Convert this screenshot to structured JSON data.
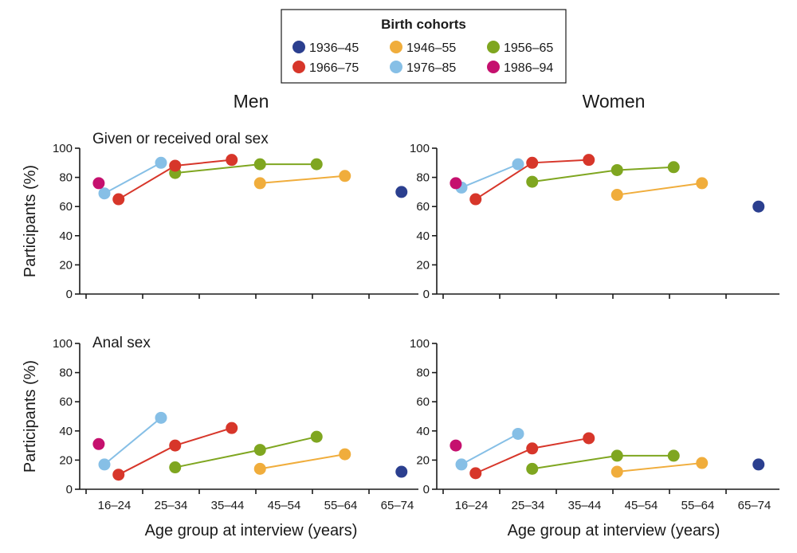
{
  "legend": {
    "title": "Birth cohorts",
    "cohorts": [
      {
        "label": "1936–45",
        "color": "#2b3f8f"
      },
      {
        "label": "1946–55",
        "color": "#f0ad3c"
      },
      {
        "label": "1956–65",
        "color": "#7fa620"
      },
      {
        "label": "1966–75",
        "color": "#d7362a"
      },
      {
        "label": "1976–85",
        "color": "#86bfe6"
      },
      {
        "label": "1986–94",
        "color": "#c5106e"
      }
    ]
  },
  "columns": [
    "Men",
    "Women"
  ],
  "rows": [
    "Given or received oral sex",
    "Anal sex"
  ],
  "xlabel": "Age group at interview (years)",
  "ylabel": "Participants (%)",
  "chart_data": [
    {
      "type": "line",
      "title": "Given or received oral sex",
      "column": "Men",
      "xlabel": "",
      "ylabel": "Participants (%)",
      "categories": [
        "16–24",
        "25–34",
        "35–44",
        "45–54",
        "55–64",
        "65–74"
      ],
      "ylim": [
        0,
        100
      ],
      "yticks": [
        0,
        20,
        40,
        60,
        80,
        100
      ],
      "series": [
        {
          "name": "1936–45",
          "points": [
            [
              5.25,
              70
            ]
          ]
        },
        {
          "name": "1946–55",
          "points": [
            [
              2.75,
              76
            ],
            [
              4.25,
              81
            ]
          ]
        },
        {
          "name": "1956–65",
          "points": [
            [
              1.25,
              83
            ],
            [
              2.75,
              89
            ],
            [
              3.75,
              89
            ]
          ]
        },
        {
          "name": "1966–75",
          "points": [
            [
              0.25,
              65
            ],
            [
              1.25,
              88
            ],
            [
              2.25,
              92
            ]
          ]
        },
        {
          "name": "1976–85",
          "points": [
            [
              0.0,
              69
            ],
            [
              1.0,
              90
            ]
          ]
        },
        {
          "name": "1986–94",
          "points": [
            [
              -0.1,
              76
            ]
          ]
        }
      ]
    },
    {
      "type": "line",
      "title": "",
      "column": "Women",
      "xlabel": "",
      "ylabel": "",
      "categories": [
        "16–24",
        "25–34",
        "35–44",
        "45–54",
        "55–64",
        "65–74"
      ],
      "ylim": [
        0,
        100
      ],
      "yticks": [
        0,
        20,
        40,
        60,
        80,
        100
      ],
      "series": [
        {
          "name": "1936–45",
          "points": [
            [
              5.25,
              60
            ]
          ]
        },
        {
          "name": "1946–55",
          "points": [
            [
              2.75,
              68
            ],
            [
              4.25,
              76
            ]
          ]
        },
        {
          "name": "1956–65",
          "points": [
            [
              1.25,
              77
            ],
            [
              2.75,
              85
            ],
            [
              3.75,
              87
            ]
          ]
        },
        {
          "name": "1966–75",
          "points": [
            [
              0.25,
              65
            ],
            [
              1.25,
              90
            ],
            [
              2.25,
              92
            ]
          ]
        },
        {
          "name": "1976–85",
          "points": [
            [
              0.0,
              73
            ],
            [
              1.0,
              89
            ]
          ]
        },
        {
          "name": "1986–94",
          "points": [
            [
              -0.1,
              76
            ]
          ]
        }
      ]
    },
    {
      "type": "line",
      "title": "Anal sex",
      "column": "Men",
      "xlabel": "Age group at interview (years)",
      "ylabel": "Participants (%)",
      "categories": [
        "16–24",
        "25–34",
        "35–44",
        "45–54",
        "55–64",
        "65–74"
      ],
      "ylim": [
        0,
        100
      ],
      "yticks": [
        0,
        20,
        40,
        60,
        80,
        100
      ],
      "series": [
        {
          "name": "1936–45",
          "points": [
            [
              5.25,
              12
            ]
          ]
        },
        {
          "name": "1946–55",
          "points": [
            [
              2.75,
              14
            ],
            [
              4.25,
              24
            ]
          ]
        },
        {
          "name": "1956–65",
          "points": [
            [
              1.25,
              15
            ],
            [
              2.75,
              27
            ],
            [
              3.75,
              36
            ]
          ]
        },
        {
          "name": "1966–75",
          "points": [
            [
              0.25,
              10
            ],
            [
              1.25,
              30
            ],
            [
              2.25,
              42
            ]
          ]
        },
        {
          "name": "1976–85",
          "points": [
            [
              0.0,
              17
            ],
            [
              1.0,
              49
            ]
          ]
        },
        {
          "name": "1986–94",
          "points": [
            [
              -0.1,
              31
            ]
          ]
        }
      ]
    },
    {
      "type": "line",
      "title": "",
      "column": "Women",
      "xlabel": "Age group at interview (years)",
      "ylabel": "",
      "categories": [
        "16–24",
        "25–34",
        "35–44",
        "45–54",
        "55–64",
        "65–74"
      ],
      "ylim": [
        0,
        100
      ],
      "yticks": [
        0,
        20,
        40,
        60,
        80,
        100
      ],
      "series": [
        {
          "name": "1936–45",
          "points": [
            [
              5.25,
              17
            ]
          ]
        },
        {
          "name": "1946–55",
          "points": [
            [
              2.75,
              12
            ],
            [
              4.25,
              18
            ]
          ]
        },
        {
          "name": "1956–65",
          "points": [
            [
              1.25,
              14
            ],
            [
              2.75,
              23
            ],
            [
              3.75,
              23
            ]
          ]
        },
        {
          "name": "1966–75",
          "points": [
            [
              0.25,
              11
            ],
            [
              1.25,
              28
            ],
            [
              2.25,
              35
            ]
          ]
        },
        {
          "name": "1976–85",
          "points": [
            [
              0.0,
              17
            ],
            [
              1.0,
              38
            ]
          ]
        },
        {
          "name": "1986–94",
          "points": [
            [
              -0.1,
              30
            ]
          ]
        }
      ]
    }
  ]
}
